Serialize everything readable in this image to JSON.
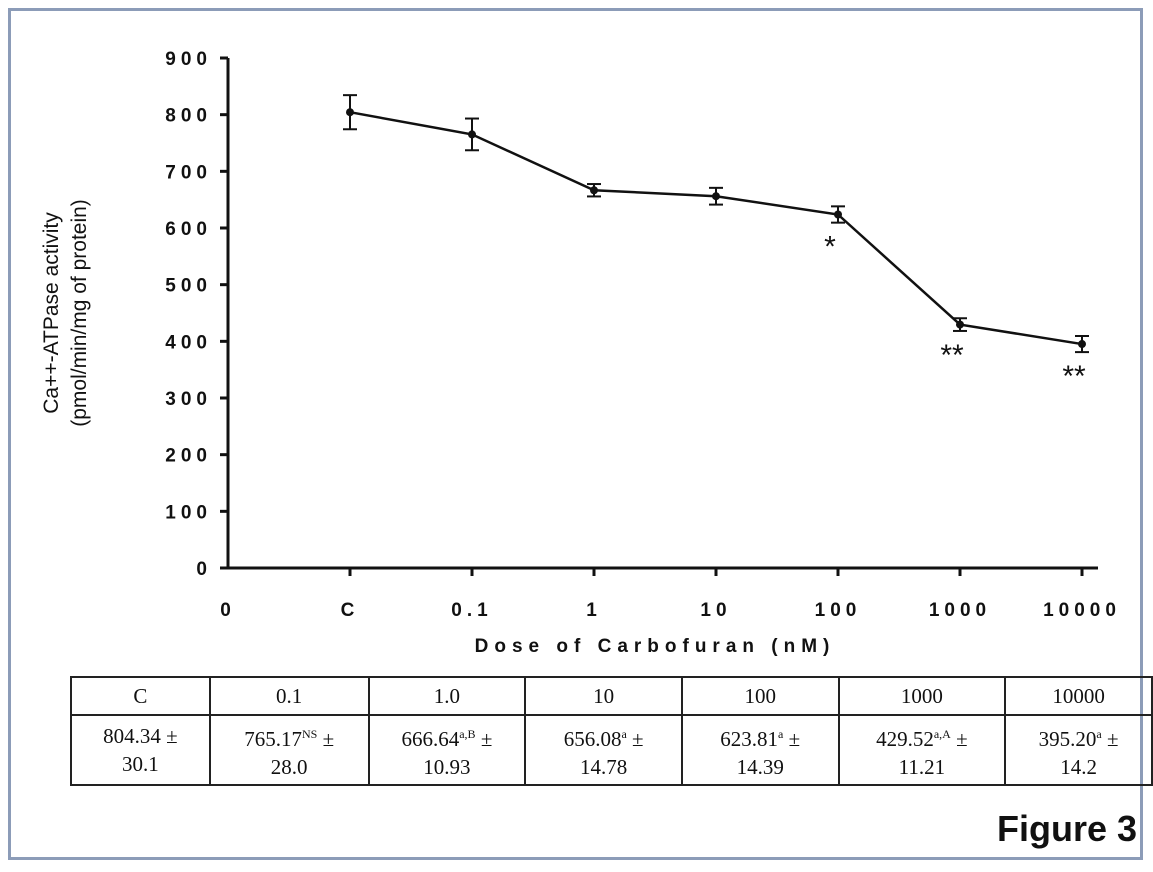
{
  "chart_data": {
    "type": "line",
    "categories": [
      "C",
      "0.1",
      "1",
      "10",
      "100",
      "1000",
      "10000"
    ],
    "x_tick_labels": [
      "0",
      "C",
      "0.1",
      "1",
      "10",
      "100",
      "1000",
      "10000"
    ],
    "y_tick_labels": [
      "0",
      "100",
      "200",
      "300",
      "400",
      "500",
      "600",
      "700",
      "800",
      "900"
    ],
    "values": [
      804.34,
      765.17,
      666.64,
      656.08,
      623.81,
      429.52,
      395.2
    ],
    "errors": [
      30.1,
      28.0,
      10.93,
      14.78,
      14.39,
      11.21,
      14.2
    ],
    "significance": [
      "",
      "",
      "",
      "",
      "*",
      "**",
      "**"
    ],
    "xlabel": "Dose of Carbofuran (nM)",
    "ylabel_line1": "Ca++-ATPase activity",
    "ylabel_line2": "(pmol/min/mg of protein)",
    "ylim": [
      0,
      900
    ],
    "grid": false,
    "line_color": "#111111"
  },
  "table": {
    "headers": [
      "C",
      "0.1",
      "1.0",
      "10",
      "100",
      "1000",
      "10000"
    ],
    "cells": [
      {
        "value": "804.34",
        "sup": "",
        "err": "30.1"
      },
      {
        "value": "765.17",
        "sup": "NS",
        "err": "28.0"
      },
      {
        "value": "666.64",
        "sup": "a,B",
        "err": "10.93"
      },
      {
        "value": "656.08",
        "sup": "a",
        "err": "14.78"
      },
      {
        "value": "623.81",
        "sup": "a",
        "err": "14.39"
      },
      {
        "value": "429.52",
        "sup": "a,A",
        "err": "11.21"
      },
      {
        "value": "395.20",
        "sup": "a",
        "err": "14.2"
      }
    ],
    "pm": "±"
  },
  "figure_label": "Figure 3",
  "colors": {
    "frame": "#8c9cb8",
    "ink": "#111111"
  }
}
